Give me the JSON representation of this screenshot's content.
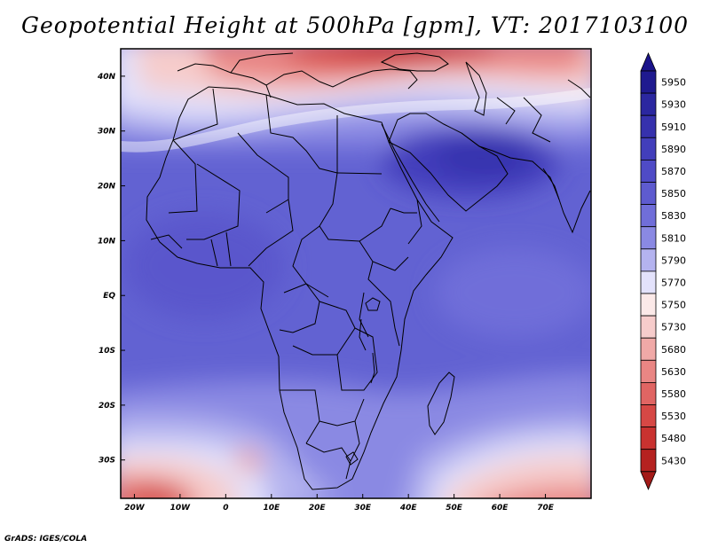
{
  "title": "Geopotential Height at 500hPa [gpm], VT: 2017103100",
  "credit": "GrADS: IGES/COLA",
  "map": {
    "lon_range": [
      -23,
      80
    ],
    "lat_range": [
      -37,
      45
    ],
    "lat_ticks": [
      {
        "value": 40,
        "label": "40N"
      },
      {
        "value": 30,
        "label": "30N"
      },
      {
        "value": 20,
        "label": "20N"
      },
      {
        "value": 10,
        "label": "10N"
      },
      {
        "value": 0,
        "label": "EQ"
      },
      {
        "value": -10,
        "label": "10S"
      },
      {
        "value": -20,
        "label": "20S"
      },
      {
        "value": -30,
        "label": "30S"
      }
    ],
    "lon_ticks": [
      {
        "value": -20,
        "label": "20W"
      },
      {
        "value": -10,
        "label": "10W"
      },
      {
        "value": 0,
        "label": "0"
      },
      {
        "value": 10,
        "label": "10E"
      },
      {
        "value": 20,
        "label": "20E"
      },
      {
        "value": 30,
        "label": "30E"
      },
      {
        "value": 40,
        "label": "40E"
      },
      {
        "value": 50,
        "label": "50E"
      },
      {
        "value": 60,
        "label": "60E"
      },
      {
        "value": 70,
        "label": "70E"
      }
    ]
  },
  "colorbar": {
    "levels": [
      {
        "label": "5950",
        "color": "#1f1a8f"
      },
      {
        "label": "5930",
        "color": "#2b27a0"
      },
      {
        "label": "5910",
        "color": "#3631ad"
      },
      {
        "label": "5890",
        "color": "#423ebb"
      },
      {
        "label": "5870",
        "color": "#4f4bc6"
      },
      {
        "label": "5850",
        "color": "#5e5bcf"
      },
      {
        "label": "5830",
        "color": "#706ed9"
      },
      {
        "label": "5810",
        "color": "#8a89e3"
      },
      {
        "label": "5790",
        "color": "#b4b3ef"
      },
      {
        "label": "5770",
        "color": "#e3e2fb"
      },
      {
        "label": "5750",
        "color": "#fbe9e8"
      },
      {
        "label": "5730",
        "color": "#f6cccb"
      },
      {
        "label": "5680",
        "color": "#f0a9a7"
      },
      {
        "label": "5630",
        "color": "#e98684"
      },
      {
        "label": "5580",
        "color": "#e06563"
      },
      {
        "label": "5530",
        "color": "#d64845"
      },
      {
        "label": "5480",
        "color": "#c93230"
      },
      {
        "label": "5430",
        "color": "#b52220"
      }
    ],
    "top_arrow_color": "#1a138a",
    "bottom_arrow_color": "#a31a18"
  }
}
